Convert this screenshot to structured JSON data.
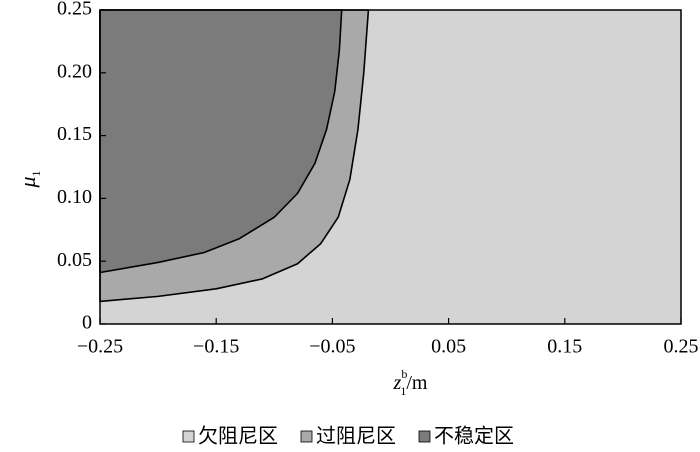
{
  "chart_data": {
    "type": "region",
    "x_label": {
      "base": "z",
      "sub": "1",
      "sup": "b",
      "unit": "/m"
    },
    "y_label": {
      "base": "μ",
      "sub": "1"
    },
    "xlim": [
      -0.25,
      0.25
    ],
    "ylim": [
      0,
      0.25
    ],
    "xticks": [
      {
        "value": -0.25,
        "label": "−0.25"
      },
      {
        "value": -0.15,
        "label": "−0.15"
      },
      {
        "value": -0.05,
        "label": "−0.05"
      },
      0.05,
      0.15,
      0.25
    ],
    "yticks": [
      0,
      0.05,
      {
        "value": 0.1,
        "label": "0.10"
      },
      0.15,
      {
        "value": 0.2,
        "label": "0.20"
      },
      0.25
    ],
    "legend": "bottom",
    "series": [
      {
        "name": "欠阻尼区",
        "color": "#d4d4d4"
      },
      {
        "name": "过阻尼区",
        "color": "#a9a9a9",
        "x": [
          -0.25,
          -0.2,
          -0.15,
          -0.11,
          -0.08,
          -0.06,
          -0.045,
          -0.035,
          -0.028,
          -0.023,
          -0.019
        ],
        "values": [
          0.018,
          0.022,
          0.028,
          0.036,
          0.048,
          0.064,
          0.085,
          0.115,
          0.155,
          0.2,
          0.25
        ]
      },
      {
        "name": "不稳定区",
        "color": "#7b7b7b",
        "x": [
          -0.25,
          -0.2,
          -0.16,
          -0.13,
          -0.1,
          -0.08,
          -0.065,
          -0.055,
          -0.048,
          -0.044,
          -0.042
        ],
        "values": [
          0.041,
          0.049,
          0.057,
          0.068,
          0.085,
          0.104,
          0.128,
          0.155,
          0.185,
          0.218,
          0.25
        ]
      }
    ]
  }
}
